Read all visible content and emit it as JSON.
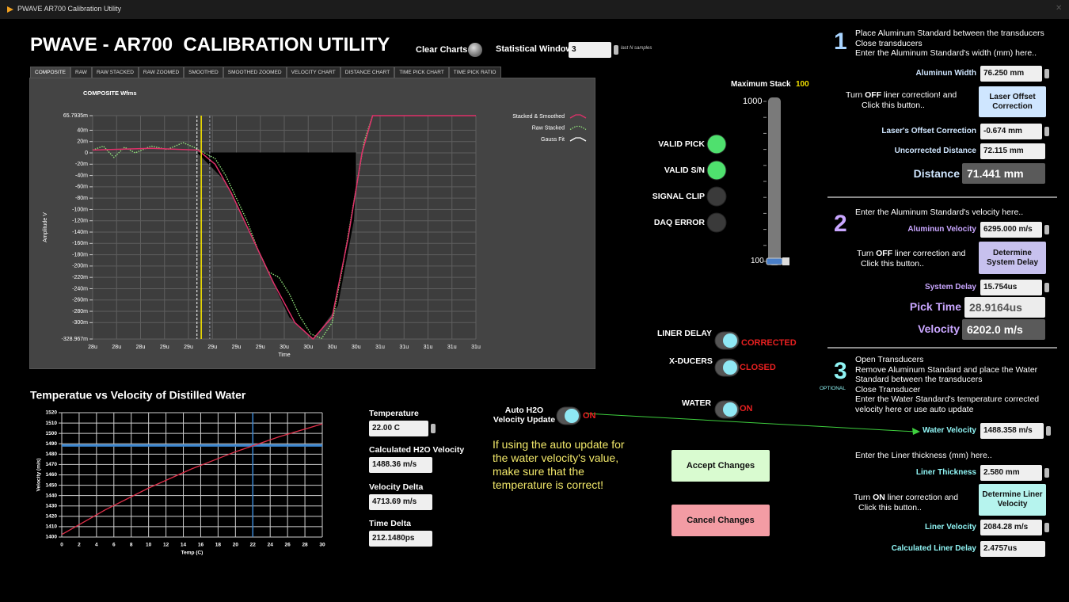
{
  "window_title": "PWAVE AR700 Calibration Utility",
  "header": {
    "title": "PWAVE - AR700  CALIBRATION UTILITY",
    "clear_charts": "Clear Charts",
    "stat_window_label": "Statistical Window",
    "stat_window_value": 3,
    "stat_window_hint": "last N samples"
  },
  "tabs": [
    "COMPOSITE",
    "RAW",
    "RAW STACKED",
    "RAW ZOOMED",
    "SMOOTHED",
    "SMOOTHED ZOOMED",
    "VELOCITY CHART",
    "DISTANCE CHART",
    "TIME PICK CHART",
    "TIME PICK RATIO"
  ],
  "active_tab": 0,
  "chart_data": [
    {
      "type": "line",
      "title": "COMPOSITE Wfms",
      "xlabel": "Time",
      "ylabel": "Amplitude V",
      "xlim": [
        27.85,
        31.45
      ],
      "ylim": [
        -0.328967,
        0.0657935
      ],
      "grid": true,
      "xticks": [
        {
          "value": 27.85,
          "label": "28u"
        },
        {
          "value": 28.075,
          "label": "28u"
        },
        {
          "value": 28.3,
          "label": "28u"
        },
        {
          "value": 28.525,
          "label": "29u"
        },
        {
          "value": 28.75,
          "label": "29u"
        },
        {
          "value": 28.975,
          "label": "29u"
        },
        {
          "value": 29.2,
          "label": "29u"
        },
        {
          "value": 29.425,
          "label": "29u"
        },
        {
          "value": 29.65,
          "label": "30u"
        },
        {
          "value": 29.875,
          "label": "30u"
        },
        {
          "value": 30.1,
          "label": "30u"
        },
        {
          "value": 30.325,
          "label": "30u"
        },
        {
          "value": 30.55,
          "label": "31u"
        },
        {
          "value": 30.775,
          "label": "31u"
        },
        {
          "value": 31.0,
          "label": "31u"
        },
        {
          "value": 31.225,
          "label": "31u"
        },
        {
          "value": 31.45,
          "label": "31u"
        }
      ],
      "yticks": [
        {
          "value": 0.0657935,
          "label": "65.7935m"
        },
        {
          "value": 0.04,
          "label": "40m"
        },
        {
          "value": 0.02,
          "label": "20m"
        },
        0,
        {
          "value": -0.02,
          "label": "-20m"
        },
        {
          "value": -0.04,
          "label": "-40m"
        },
        {
          "value": -0.06,
          "label": "-60m"
        },
        {
          "value": -0.08,
          "label": "-80m"
        },
        {
          "value": -0.1,
          "label": "-100m"
        },
        {
          "value": -0.12,
          "label": "-120m"
        },
        {
          "value": -0.14,
          "label": "-140m"
        },
        {
          "value": -0.16,
          "label": "-160m"
        },
        {
          "value": -0.18,
          "label": "-180m"
        },
        {
          "value": -0.2,
          "label": "-200m"
        },
        {
          "value": -0.22,
          "label": "-220m"
        },
        {
          "value": -0.24,
          "label": "-240m"
        },
        {
          "value": -0.26,
          "label": "-260m"
        },
        {
          "value": -0.28,
          "label": "-280m"
        },
        {
          "value": -0.3,
          "label": "-300m"
        },
        {
          "value": -0.328967,
          "label": "-328.967m"
        }
      ],
      "series": [
        {
          "name": "Gauss Fit",
          "color": "#000000",
          "style": "fill",
          "x": [
            28.84,
            29.1,
            29.4,
            29.7,
            29.92,
            30.15,
            30.3,
            30.32,
            30.32
          ],
          "values": [
            0,
            -0.05,
            -0.17,
            -0.29,
            -0.329,
            -0.27,
            -0.12,
            -0.06,
            0
          ]
        },
        {
          "name": "Raw Stacked",
          "color": "#8fe07a",
          "style": "dotted",
          "x": [
            27.85,
            27.95,
            28.05,
            28.15,
            28.25,
            28.4,
            28.55,
            28.7,
            28.8,
            28.9,
            29.0,
            29.1,
            29.2,
            29.3,
            29.4,
            29.5,
            29.6,
            29.7,
            29.8,
            29.9,
            30.0,
            30.1,
            30.2,
            30.3,
            30.4,
            30.48
          ],
          "values": [
            0.005,
            0.012,
            -0.008,
            0.01,
            0.0,
            0.012,
            0.006,
            0.018,
            0.01,
            0.0,
            -0.01,
            -0.04,
            -0.08,
            -0.12,
            -0.17,
            -0.21,
            -0.22,
            -0.25,
            -0.29,
            -0.32,
            -0.328,
            -0.3,
            -0.2,
            -0.09,
            0.02,
            0.0658
          ]
        },
        {
          "name": "Stacked & Smoothed",
          "color": "#e0306a",
          "style": "solid",
          "x": [
            27.85,
            28.4,
            28.84,
            29.0,
            29.15,
            29.35,
            29.55,
            29.75,
            29.92,
            30.1,
            30.25,
            30.38,
            30.48,
            31.45
          ],
          "values": [
            0.005,
            0.008,
            0.005,
            -0.02,
            -0.07,
            -0.15,
            -0.23,
            -0.3,
            -0.329,
            -0.29,
            -0.15,
            0,
            0.0658,
            0.0658
          ]
        }
      ],
      "legend_order": [
        2,
        1,
        0
      ],
      "markers": [
        {
          "x": 28.83,
          "color": "#ffffff",
          "style": "dashed"
        },
        {
          "x": 28.87,
          "color": "#f2e000",
          "style": "solid"
        },
        {
          "x": 28.95,
          "color": "#9aa0b0",
          "style": "dashed"
        }
      ]
    },
    {
      "type": "line",
      "title": "Temperatue vs Velocity of Distilled Water",
      "xlabel": "Temp (C)",
      "ylabel": "Velocity (m/s)",
      "xlim": [
        0,
        30
      ],
      "ylim": [
        1400,
        1520
      ],
      "grid": true,
      "xticks": [
        0,
        2,
        4,
        6,
        8,
        10,
        12,
        14,
        16,
        18,
        20,
        22,
        24,
        26,
        28,
        30
      ],
      "yticks": [
        1400,
        1410,
        1420,
        1430,
        1440,
        1450,
        1460,
        1470,
        1480,
        1490,
        1500,
        1510,
        1520
      ],
      "x": [
        0,
        5,
        10,
        15,
        20,
        25,
        30
      ],
      "series": [
        {
          "color": "#e0304a",
          "values": [
            1402.4,
            1426.2,
            1447.3,
            1465.9,
            1482.3,
            1496.7,
            1509.2
          ]
        }
      ],
      "reference": {
        "x": 22,
        "y": 1488.36,
        "color": "#3a86d0"
      }
    }
  ],
  "stack": {
    "label": "Maximum Stack",
    "value": 100,
    "scale_top": 1000,
    "scale_bottom": 100
  },
  "indicators": [
    {
      "label": "VALID PICK",
      "on": true
    },
    {
      "label": "VALID S/N",
      "on": true
    },
    {
      "label": "SIGNAL CLIP",
      "on": false
    },
    {
      "label": "DAQ ERROR",
      "on": false
    }
  ],
  "toggles": [
    {
      "label": "LINER DELAY",
      "state": "CORRECTED"
    },
    {
      "label": "X-DUCERS",
      "state": "CLOSED"
    },
    {
      "label": "WATER",
      "state": "ON"
    },
    {
      "label": "Auto H2O Velocity Update",
      "state": "ON"
    }
  ],
  "water_fields": [
    {
      "label": "Temperature",
      "value": "22.00 C"
    },
    {
      "label": "Calculated H2O Velocity",
      "value": "1488.36 m/s"
    },
    {
      "label": "Velocity Delta",
      "value": "4713.69 m/s"
    },
    {
      "label": "Time Delta",
      "value": "212.1480ps"
    }
  ],
  "note": "If using the auto update for the water velocity's value, make sure that the temperature is correct!",
  "buttons": {
    "accept": "Accept Changes",
    "cancel": "Cancel Changes"
  },
  "steps": [
    {
      "number": "1",
      "instructions": [
        "Place Aluminum Standard between the transducers",
        "Close transducers",
        "Enter the Aluminum Standard's width (mm) here.."
      ],
      "fields": [
        {
          "label": "Aluminun Width",
          "value": "76.250 mm"
        },
        {
          "label": "Laser's Offset Correction",
          "value": "-0.674 mm"
        },
        {
          "label": "Uncorrected Distance",
          "value": "72.115 mm"
        }
      ],
      "prompt": {
        "pre": "Turn ",
        "bold": "OFF",
        "post": " liner correction! and",
        "line2": "Click this button.."
      },
      "button": "Laser Offset Correction",
      "big": [
        {
          "label": "Distance",
          "value": "71.441 mm"
        }
      ]
    },
    {
      "number": "2",
      "instructions": [
        "Enter the Aluminum Standard's velocity here.."
      ],
      "fields": [
        {
          "label": "Aluminun Velocity",
          "value": "6295.000 m/s"
        },
        {
          "label": "System Delay",
          "value": "15.754us"
        }
      ],
      "prompt": {
        "pre": "Turn ",
        "bold": "OFF",
        "post": " liner correction and",
        "line2": "Click this button.."
      },
      "button": "Determine System Delay",
      "big": [
        {
          "label": "Pick Time",
          "value": "28.9164us"
        },
        {
          "label": "Velocity",
          "value": "6202.0 m/s"
        }
      ]
    },
    {
      "number": "3",
      "tag": "OPTIONAL",
      "instructions": [
        "Open Transducers",
        "Remove Aluminum Standard and place the Water Standard between the transducers",
        "Close Transducer",
        "Enter the Water Standard's temperature corrected velocity here or use auto update"
      ],
      "instructions2": "Enter the Liner thickness (mm) here..",
      "fields": [
        {
          "label": "Water Velocity",
          "value": "1488.358 m/s"
        },
        {
          "label": "Liner Thickness",
          "value": "2.580 mm"
        },
        {
          "label": "Liner Velocity",
          "value": "2084.28 m/s"
        },
        {
          "label": "Calculated Liner Delay",
          "value": "2.4757us"
        }
      ],
      "prompt": {
        "pre": "Turn ",
        "bold": "ON",
        "post": " liner correction and",
        "line2": "Click this button.."
      },
      "button": "Determine Liner Velocity"
    }
  ]
}
